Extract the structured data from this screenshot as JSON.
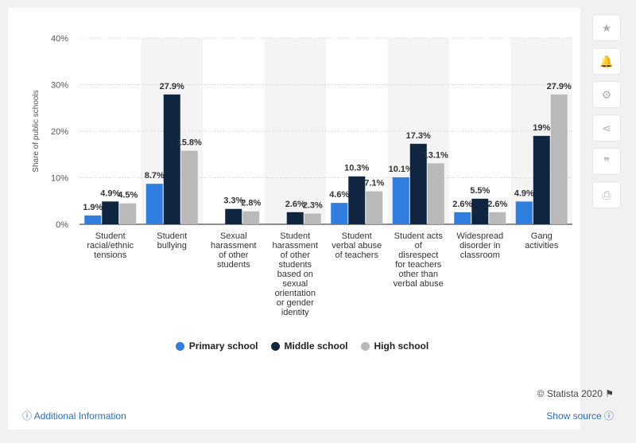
{
  "chart_data": {
    "type": "bar",
    "ylabel": "Share of public schools",
    "ylim": [
      0,
      40
    ],
    "yticks": [
      0,
      10,
      20,
      30,
      40
    ],
    "ytick_labels": [
      "0%",
      "10%",
      "20%",
      "30%",
      "40%"
    ],
    "categories": [
      [
        "Student",
        "racial/ethnic",
        "tensions"
      ],
      [
        "Student",
        "bullying"
      ],
      [
        "Sexual",
        "harassment",
        "of other",
        "students"
      ],
      [
        "Student",
        "harassment",
        "of other",
        "students",
        "based on",
        "sexual",
        "orientation",
        "or gender",
        "identity"
      ],
      [
        "Student",
        "verbal abuse",
        "of teachers"
      ],
      [
        "Student acts",
        "of",
        "disrespect",
        "for teachers",
        "other than",
        "verbal abuse"
      ],
      [
        "Widespread",
        "disorder in",
        "classroom"
      ],
      [
        "Gang",
        "activities"
      ]
    ],
    "series": [
      {
        "name": "Primary school",
        "color": "#2f7ee0",
        "values": [
          1.9,
          8.7,
          null,
          null,
          4.6,
          10.1,
          2.6,
          4.9
        ],
        "labels": [
          "1.9%",
          "8.7%",
          "",
          "",
          "4.6%",
          "10.1%",
          "2.6%",
          "4.9%"
        ]
      },
      {
        "name": "Middle school",
        "color": "#0f2540",
        "values": [
          4.9,
          27.9,
          3.3,
          2.6,
          10.3,
          17.3,
          5.5,
          19
        ],
        "labels": [
          "4.9%",
          "27.9%",
          "3.3%",
          "2.6%",
          "10.3%",
          "17.3%",
          "5.5%",
          "19%"
        ]
      },
      {
        "name": "High school",
        "color": "#b9b9b9",
        "values": [
          4.5,
          15.8,
          2.8,
          2.3,
          7.1,
          13.1,
          2.6,
          27.9
        ],
        "labels": [
          "4.5%",
          "15.8%",
          "2.8%",
          "2.3%",
          "7.1%",
          "13.1%",
          "2.6%",
          "27.9%"
        ]
      }
    ],
    "grid": true,
    "legend": "bottom"
  },
  "sidebar": {
    "buttons": [
      {
        "icon": "star-icon",
        "glyph": "★"
      },
      {
        "icon": "bell-icon",
        "glyph": "🔔"
      },
      {
        "icon": "gear-icon",
        "glyph": "⚙"
      },
      {
        "icon": "share-icon",
        "glyph": "⋖"
      },
      {
        "icon": "quote-icon",
        "glyph": "❞"
      },
      {
        "icon": "print-icon",
        "glyph": "⎙"
      }
    ]
  },
  "footer": {
    "credit": "© Statista 2020",
    "additional_info": "Additional Information",
    "show_source": "Show source"
  }
}
